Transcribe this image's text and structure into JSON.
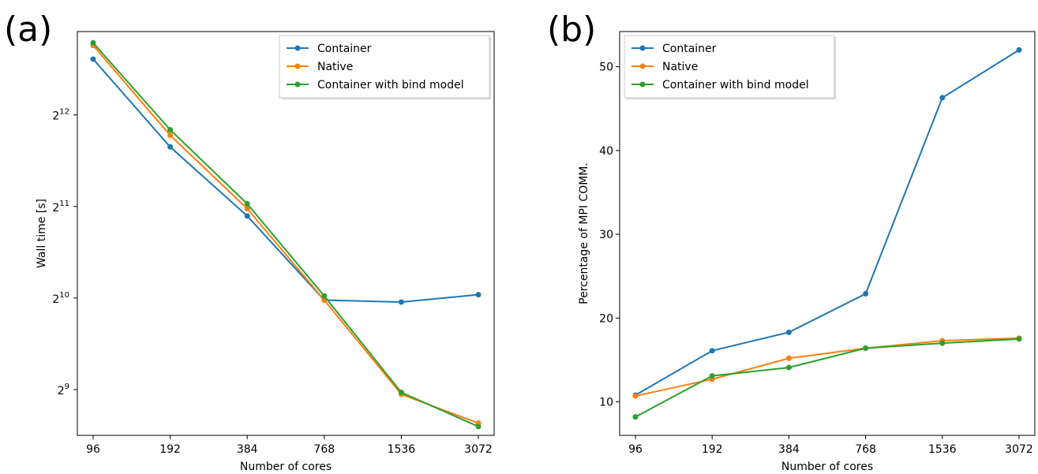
{
  "colors": {
    "container": "#1f77b4",
    "native": "#ff7f0e",
    "bind": "#2ca02c"
  },
  "chart_data": [
    {
      "panel": "(a)",
      "type": "line",
      "categories": [
        "96",
        "192",
        "384",
        "768",
        "1536",
        "3072"
      ],
      "xlabel": "Number of cores",
      "ylabel": "Wall time [s]",
      "yscale": "log2",
      "yticks": [
        {
          "base": "2",
          "exp": "9",
          "value": 512
        },
        {
          "base": "2",
          "exp": "10",
          "value": 1024
        },
        {
          "base": "2",
          "exp": "11",
          "value": 2048
        },
        {
          "base": "2",
          "exp": "12",
          "value": 4096
        }
      ],
      "ylim": [
        362,
        7700
      ],
      "legend_position": "top-right",
      "series": [
        {
          "name": "Container",
          "color": "#1f77b4",
          "values": [
            6250,
            3215,
            1906,
            1008,
            993,
            1050
          ]
        },
        {
          "name": "Native",
          "color": "#ff7f0e",
          "values": [
            6930,
            3510,
            2015,
            1008,
            494,
            397
          ]
        },
        {
          "name": "Container with bind model",
          "color": "#2ca02c",
          "values": [
            7070,
            3660,
            2090,
            1040,
            501,
            387
          ]
        }
      ]
    },
    {
      "panel": "(b)",
      "type": "line",
      "categories": [
        "96",
        "192",
        "384",
        "768",
        "1536",
        "3072"
      ],
      "xlabel": "Number of cores",
      "ylabel": "Percentage of MPI COMM.",
      "yscale": "linear",
      "yticks": [
        {
          "label": "10",
          "value": 10
        },
        {
          "label": "20",
          "value": 20
        },
        {
          "label": "30",
          "value": 30
        },
        {
          "label": "40",
          "value": 40
        },
        {
          "label": "50",
          "value": 50
        }
      ],
      "ylim": [
        6.0,
        54.2
      ],
      "legend_position": "top-left",
      "series": [
        {
          "name": "Container",
          "color": "#1f77b4",
          "values": [
            10.8,
            16.1,
            18.3,
            22.9,
            46.3,
            52.0
          ]
        },
        {
          "name": "Native",
          "color": "#ff7f0e",
          "values": [
            10.7,
            12.7,
            15.2,
            16.4,
            17.3,
            17.6
          ]
        },
        {
          "name": "Container with bind model",
          "color": "#2ca02c",
          "values": [
            8.2,
            13.1,
            14.1,
            16.4,
            17.0,
            17.5
          ]
        }
      ]
    }
  ]
}
